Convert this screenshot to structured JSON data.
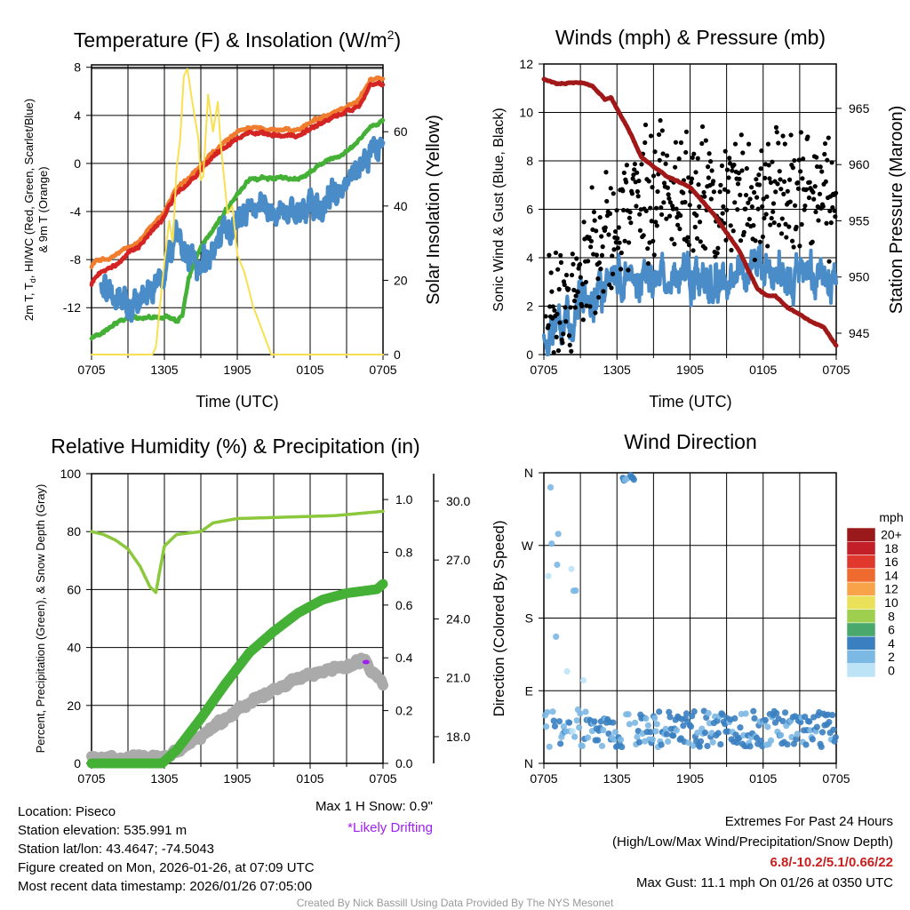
{
  "chart_data": [
    {
      "type": "line",
      "title": "Temperature (F) & Insolation (W/m",
      "title_sup": "2",
      "title_end": ")",
      "xlabel": "Time (UTC)",
      "ylabel_line1_a": "2m T, T",
      "ylabel_line1_sub": "d",
      "ylabel_line1_b": ", HI/WC (Red, Green, Scarlet/Blue)",
      "ylabel_line2": "& 9m T (Orange)",
      "y2label": "Solar Insolation (Yellow)",
      "x_ticks": [
        "0705",
        "1305",
        "1905",
        "0105",
        "0705"
      ],
      "y_ticks": [
        "8",
        "4",
        "0",
        "-4",
        "-8",
        "-12"
      ],
      "y2_ticks": [
        "0",
        "20",
        "40",
        "60"
      ],
      "xlim_hours": [
        0,
        24
      ],
      "ylim": [
        -15.9,
        8.2
      ],
      "y2lim": [
        0,
        78
      ],
      "series": [
        {
          "name": "9m T",
          "color": "#f07c2e",
          "axis": "left",
          "knots": [
            [
              0,
              -8.5
            ],
            [
              0.5,
              -8
            ],
            [
              1.5,
              -8
            ],
            [
              2,
              -7.6
            ],
            [
              3,
              -7
            ],
            [
              4,
              -6.4
            ],
            [
              6,
              -4
            ],
            [
              7,
              -2.1
            ],
            [
              8,
              -1.3
            ],
            [
              9,
              -0.2
            ],
            [
              10,
              0.9
            ],
            [
              12,
              2.6
            ],
            [
              13,
              3
            ],
            [
              15,
              2.8
            ],
            [
              17,
              2.8
            ],
            [
              18,
              3.4
            ],
            [
              20,
              4.3
            ],
            [
              21,
              4.7
            ],
            [
              22,
              5.3
            ],
            [
              23,
              7
            ],
            [
              24,
              7
            ]
          ]
        },
        {
          "name": "2m T",
          "color": "#d42424",
          "axis": "left",
          "knots": [
            [
              0,
              -10
            ],
            [
              0.5,
              -9.2
            ],
            [
              2,
              -8.5
            ],
            [
              3,
              -7.4
            ],
            [
              4,
              -6.8
            ],
            [
              6,
              -4.4
            ],
            [
              7,
              -2.4
            ],
            [
              8,
              -1.7
            ],
            [
              9,
              -0.6
            ],
            [
              10,
              0.6
            ],
            [
              12,
              2.2
            ],
            [
              13,
              2.6
            ],
            [
              15,
              2.3
            ],
            [
              17,
              2.3
            ],
            [
              18,
              2.9
            ],
            [
              20,
              3.9
            ],
            [
              21,
              4.3
            ],
            [
              22,
              4.8
            ],
            [
              23,
              6.6
            ],
            [
              24,
              6.5
            ]
          ]
        },
        {
          "name": "Td",
          "color": "#44b035",
          "axis": "left",
          "knots": [
            [
              0,
              -14.5
            ],
            [
              1,
              -14
            ],
            [
              2,
              -13.2
            ],
            [
              3,
              -12.8
            ],
            [
              5,
              -12.8
            ],
            [
              6,
              -12.7
            ],
            [
              7,
              -13.2
            ],
            [
              7.5,
              -12.5
            ],
            [
              8,
              -9.5
            ],
            [
              9,
              -7
            ],
            [
              10,
              -5.5
            ],
            [
              11,
              -4
            ],
            [
              12,
              -2.6
            ],
            [
              13,
              -1.3
            ],
            [
              15,
              -1.2
            ],
            [
              17,
              -1.3
            ],
            [
              18,
              -0.7
            ],
            [
              19,
              0
            ],
            [
              20,
              0.5
            ],
            [
              21,
              0.9
            ],
            [
              22,
              1.9
            ],
            [
              23,
              3.1
            ],
            [
              24,
              3.6
            ]
          ]
        },
        {
          "name": "HI/WC",
          "color": "#4a8cc8",
          "axis": "left",
          "noise": 1.3,
          "knots": [
            [
              0.8,
              -10.5
            ],
            [
              2,
              -11
            ],
            [
              3,
              -11.5
            ],
            [
              4,
              -12
            ],
            [
              5,
              -10.5
            ],
            [
              6,
              -8.5
            ],
            [
              7,
              -6
            ],
            [
              8,
              -7.5
            ],
            [
              9,
              -9
            ],
            [
              10,
              -7
            ],
            [
              11,
              -6
            ],
            [
              12,
              -4.5
            ],
            [
              13,
              -3.5
            ],
            [
              15,
              -4
            ],
            [
              17,
              -4
            ],
            [
              19,
              -3.5
            ],
            [
              20,
              -3
            ],
            [
              21,
              -1.5
            ],
            [
              22,
              -0.5
            ],
            [
              23,
              1.2
            ],
            [
              24,
              1.5
            ]
          ]
        },
        {
          "name": "Solar Insolation",
          "color": "#f8e050",
          "axis": "right",
          "knots": [
            [
              0,
              0
            ],
            [
              5,
              0
            ],
            [
              5.3,
              2
            ],
            [
              5.6,
              12
            ],
            [
              6,
              25
            ],
            [
              6.4,
              36
            ],
            [
              6.7,
              30
            ],
            [
              7,
              50
            ],
            [
              7.3,
              58
            ],
            [
              7.6,
              75
            ],
            [
              7.9,
              77
            ],
            [
              8.2,
              70
            ],
            [
              8.5,
              64
            ],
            [
              8.8,
              58
            ],
            [
              9,
              47
            ],
            [
              9.2,
              48
            ],
            [
              9.6,
              70
            ],
            [
              10,
              60
            ],
            [
              10.4,
              68
            ],
            [
              10.6,
              58
            ],
            [
              10.9,
              48
            ],
            [
              11.2,
              38
            ],
            [
              11.6,
              40
            ],
            [
              12,
              27
            ],
            [
              12.6,
              22
            ],
            [
              13.3,
              13
            ],
            [
              14,
              7
            ],
            [
              14.8,
              0
            ],
            [
              24,
              0
            ]
          ]
        }
      ]
    },
    {
      "type": "line",
      "title": "Winds (mph) & Pressure (mb)",
      "xlabel": "Time (UTC)",
      "ylabel": "Sonic Wind & Gust (Blue, Black)",
      "y2label": "Station Pressure (Maroon)",
      "x_ticks": [
        "0705",
        "1305",
        "1905",
        "0105",
        "0705"
      ],
      "y_ticks": [
        "0",
        "2",
        "4",
        "6",
        "8",
        "10",
        "12"
      ],
      "y2_ticks": [
        "945",
        "950",
        "955",
        "960",
        "965"
      ],
      "xlim_hours": [
        0,
        24
      ],
      "ylim": [
        0,
        12
      ],
      "y2lim": [
        943.1,
        968.95
      ],
      "series": [
        {
          "name": "Sonic Wind",
          "color": "#4a8cc8",
          "axis": "left",
          "noise": 0.9,
          "knots": [
            [
              0,
              0.6
            ],
            [
              1,
              1
            ],
            [
              2,
              1.4
            ],
            [
              3,
              2.3
            ],
            [
              4,
              2.8
            ],
            [
              5,
              2.8
            ],
            [
              6,
              3.4
            ],
            [
              8,
              3.1
            ],
            [
              10,
              3.3
            ],
            [
              12,
              3
            ],
            [
              14,
              3
            ],
            [
              16,
              3.3
            ],
            [
              18,
              3.4
            ],
            [
              20,
              3
            ],
            [
              22,
              3.5
            ],
            [
              24,
              2.7
            ]
          ]
        },
        {
          "name": "Gust",
          "color": "#000000",
          "axis": "left",
          "type": "scatter",
          "spread": 2.4,
          "knots": [
            [
              0,
              1.5
            ],
            [
              2,
              2.2
            ],
            [
              3,
              3.5
            ],
            [
              4,
              4.5
            ],
            [
              6,
              5
            ],
            [
              8,
              6.5
            ],
            [
              10,
              7
            ],
            [
              12,
              6.5
            ],
            [
              14,
              6.5
            ],
            [
              16,
              6.5
            ],
            [
              18,
              7
            ],
            [
              20,
              7
            ],
            [
              22,
              7
            ],
            [
              24,
              6.5
            ]
          ]
        },
        {
          "name": "Station Pressure",
          "color": "#a01818",
          "axis": "right",
          "knots": [
            [
              0,
              967.6
            ],
            [
              1,
              967.2
            ],
            [
              3,
              967.3
            ],
            [
              4,
              967
            ],
            [
              5,
              965.8
            ],
            [
              5.5,
              966
            ],
            [
              6,
              965
            ],
            [
              7,
              963
            ],
            [
              8,
              960.7
            ],
            [
              9,
              959.8
            ],
            [
              10,
              959
            ],
            [
              12,
              958
            ],
            [
              14,
              955.5
            ],
            [
              16,
              952.4
            ],
            [
              17.5,
              949
            ],
            [
              18.2,
              948.4
            ],
            [
              19,
              948.3
            ],
            [
              20,
              947.3
            ],
            [
              22,
              946
            ],
            [
              23,
              945.5
            ],
            [
              24,
              943.9
            ]
          ]
        }
      ]
    },
    {
      "type": "line",
      "title": "Relative Humidity (%) & Precipitation (in)",
      "ylabel": "Percent, Precipitation (Green), & Snow Depth (Gray)",
      "x_ticks": [
        "0705",
        "1305",
        "1905",
        "0105",
        "0705"
      ],
      "y_ticks": [
        "0",
        "20",
        "40",
        "60",
        "80",
        "100"
      ],
      "y2_ticks": [
        "0.0",
        "0.2",
        "0.4",
        "0.6",
        "0.8",
        "1.0"
      ],
      "y3_ticks": [
        "18.0",
        "21.0",
        "24.0",
        "27.0",
        "30.0"
      ],
      "xlim_hours": [
        0,
        24
      ],
      "ylim": [
        0,
        100
      ],
      "y2lim": [
        0,
        1.098
      ],
      "y3lim": [
        16.64,
        31.4
      ],
      "series": [
        {
          "name": "Relative Humidity",
          "color": "#8cc83c",
          "axis": "left",
          "knots": [
            [
              0,
              80
            ],
            [
              1,
              79
            ],
            [
              2,
              77
            ],
            [
              3,
              74
            ],
            [
              4,
              68
            ],
            [
              4.8,
              61
            ],
            [
              5.3,
              59
            ],
            [
              5.6,
              66
            ],
            [
              6,
              75
            ],
            [
              7,
              79
            ],
            [
              9,
              80
            ],
            [
              10,
              83
            ],
            [
              12,
              84.5
            ],
            [
              16,
              85
            ],
            [
              20,
              85.5
            ],
            [
              24,
              87
            ]
          ]
        },
        {
          "name": "Snow Depth",
          "color": "#aaaaaa",
          "axis": "snow",
          "knots": [
            [
              0,
              16.9
            ],
            [
              6,
              16.9
            ],
            [
              7,
              17.2
            ],
            [
              9,
              18
            ],
            [
              11,
              18.9
            ],
            [
              13,
              19.8
            ],
            [
              15,
              20.4
            ],
            [
              17,
              21
            ],
            [
              19,
              21.3
            ],
            [
              21,
              21.6
            ],
            [
              22,
              21.8
            ],
            [
              22.5,
              22
            ],
            [
              23,
              21.4
            ],
            [
              24,
              20.6
            ]
          ]
        },
        {
          "name": "Precipitation",
          "color": "#44b035",
          "axis": "right",
          "knots": [
            [
              0,
              0
            ],
            [
              5.8,
              0
            ],
            [
              7,
              0.05
            ],
            [
              9,
              0.17
            ],
            [
              11,
              0.3
            ],
            [
              13,
              0.42
            ],
            [
              15,
              0.5
            ],
            [
              17,
              0.57
            ],
            [
              19,
              0.62
            ],
            [
              21,
              0.645
            ],
            [
              23.5,
              0.66
            ],
            [
              24,
              0.68
            ]
          ]
        }
      ],
      "drifting_marker": {
        "hour": 22.6,
        "snow": 21.8,
        "color": "#a020f0"
      }
    },
    {
      "type": "scatter",
      "title": "Wind Direction",
      "ylabel": "Direction (Colored By Speed)",
      "x_ticks": [
        "0705",
        "1305",
        "1905",
        "0105",
        "0705"
      ],
      "y_ticks": [
        "N",
        "E",
        "S",
        "W",
        "N"
      ],
      "xlim_hours": [
        0,
        24
      ],
      "ylim_degrees": [
        0,
        360
      ],
      "colorbar": {
        "title": "mph",
        "labels": [
          "20+",
          "18",
          "16",
          "14",
          "12",
          "10",
          "8",
          "6",
          "4",
          "2",
          "0"
        ],
        "colors": [
          "#9a1a1c",
          "#c21f28",
          "#e0382c",
          "#ef6a2e",
          "#f8a34a",
          "#ebe05a",
          "#9fcf4e",
          "#4aa86c",
          "#3a80c0",
          "#7cb8e4",
          "#bde3f7"
        ]
      }
    }
  ],
  "info": {
    "location": "Location: Piseco",
    "elevation": "Station elevation: 535.991 m",
    "latlon": "Station lat/lon: 43.4647; -74.5043",
    "created": "Figure created on Mon, 2026-01-26, at 07:09 UTC",
    "recent": "Most recent data timestamp: 2026/01/26 07:05:00",
    "max_snow": "Max 1 H Snow: 0.9\"",
    "drifting": "*Likely Drifting",
    "extremes_title": "Extremes For Past 24 Hours",
    "extremes_legend": "(High/Low/Max Wind/Precipitation/Snow Depth)",
    "extremes_values": "6.8/-10.2/5.1/0.66/22",
    "max_gust": "Max Gust: 11.1 mph On 01/26 at 0350 UTC",
    "credit": "Created By Nick Bassill Using Data Provided By The NYS Mesonet"
  }
}
